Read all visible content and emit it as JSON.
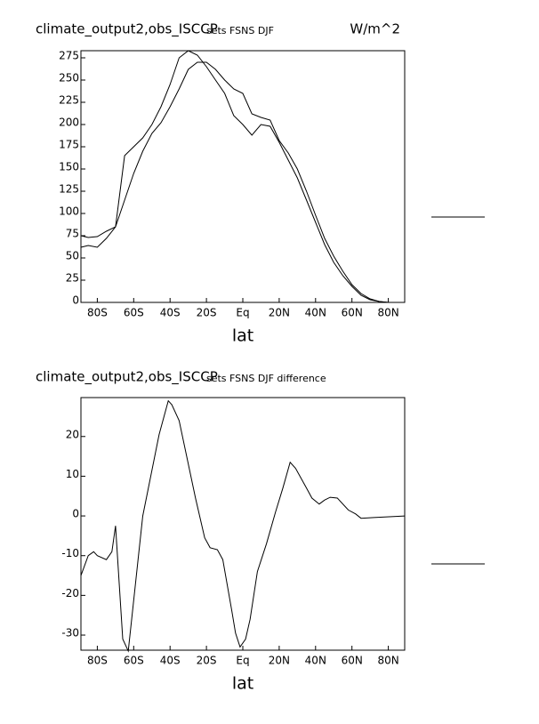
{
  "chart_data": [
    {
      "type": "line",
      "title": "climate_output2,obs_ISCCP",
      "subtitle": "sets FSNS DJF",
      "units": "W/m^2",
      "xlabel": "lat",
      "x": [
        -89,
        -85,
        -80,
        -75,
        -70,
        -65,
        -60,
        -55,
        -50,
        -45,
        -40,
        -35,
        -30,
        -25,
        -20,
        -15,
        -10,
        -5,
        0,
        5,
        10,
        15,
        20,
        25,
        30,
        35,
        40,
        45,
        50,
        55,
        60,
        65,
        70,
        75,
        80,
        85,
        89
      ],
      "series": [
        {
          "color": "#000000",
          "values": [
            75,
            73,
            74,
            80,
            85,
            165,
            175,
            185,
            200,
            220,
            245,
            275,
            283,
            278,
            265,
            250,
            235,
            210,
            200,
            188,
            200,
            198,
            180,
            160,
            140,
            115,
            90,
            65,
            45,
            30,
            18,
            8,
            3,
            1,
            0,
            0,
            0
          ]
        },
        {
          "color": "#000000",
          "values": [
            62,
            64,
            62,
            72,
            85,
            115,
            145,
            170,
            190,
            202,
            220,
            240,
            262,
            270,
            270,
            262,
            250,
            240,
            235,
            212,
            208,
            205,
            182,
            168,
            150,
            125,
            98,
            72,
            52,
            35,
            20,
            10,
            4,
            1,
            0,
            0,
            0
          ]
        }
      ],
      "xlim": [
        -89,
        89
      ],
      "ylim": [
        0,
        283
      ],
      "xticks": [
        {
          "value": -80,
          "label": "80S"
        },
        {
          "value": -60,
          "label": "60S"
        },
        {
          "value": -40,
          "label": "40S"
        },
        {
          "value": -20,
          "label": "20S"
        },
        {
          "value": 0,
          "label": "Eq"
        },
        {
          "value": 20,
          "label": "20N"
        },
        {
          "value": 40,
          "label": "40N"
        },
        {
          "value": 60,
          "label": "60N"
        },
        {
          "value": 80,
          "label": "80N"
        }
      ],
      "yticks": [
        0,
        25,
        50,
        75,
        100,
        125,
        150,
        175,
        200,
        225,
        250,
        275
      ]
    },
    {
      "type": "line",
      "title": "climate_output2,obs_ISCCP",
      "subtitle": "sets FSNS DJF difference",
      "xlabel": "lat",
      "x": [
        -89,
        -85,
        -82,
        -80,
        -75,
        -72,
        -70,
        -66,
        -63,
        -55,
        -46,
        -41,
        -39,
        -35,
        -26,
        -21,
        -18,
        -14,
        -11,
        -6,
        -4,
        -1.5,
        1.5,
        4,
        8,
        13,
        18,
        22,
        26,
        29,
        35,
        38,
        42,
        45,
        48,
        52,
        58,
        62,
        65,
        72,
        89
      ],
      "series": [
        {
          "color": "#000000",
          "values": [
            -15,
            -10,
            -9,
            -10,
            -11,
            -9,
            -2.5,
            -31,
            -34,
            0,
            20.5,
            29,
            28,
            24,
            4.5,
            -5.5,
            -8,
            -8.5,
            -11,
            -24,
            -29.5,
            -33,
            -31,
            -26,
            -14,
            -7,
            1,
            7,
            13.5,
            12,
            7,
            4.5,
            3,
            4,
            4.7,
            4.5,
            1.5,
            0.5,
            -0.6,
            -0.4,
            0
          ]
        }
      ],
      "xlim": [
        -89,
        89
      ],
      "ylim": [
        -33.8,
        29.8
      ],
      "xticks": [
        {
          "value": -80,
          "label": "80S"
        },
        {
          "value": -60,
          "label": "60S"
        },
        {
          "value": -40,
          "label": "40S"
        },
        {
          "value": -20,
          "label": "20S"
        },
        {
          "value": 0,
          "label": "Eq"
        },
        {
          "value": 20,
          "label": "20N"
        },
        {
          "value": 40,
          "label": "40N"
        },
        {
          "value": 60,
          "label": "60N"
        },
        {
          "value": 80,
          "label": "80N"
        }
      ],
      "yticks": [
        -30,
        -20,
        -10,
        0,
        10,
        20
      ]
    }
  ]
}
